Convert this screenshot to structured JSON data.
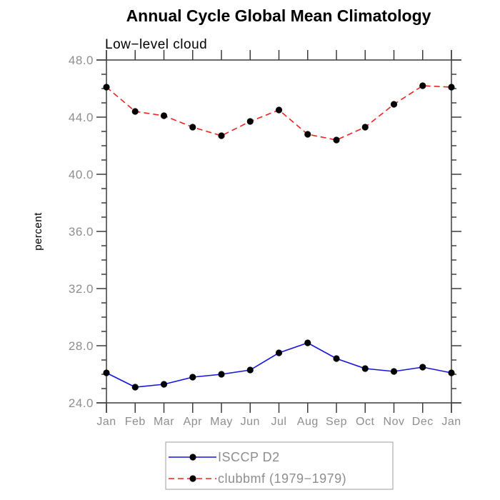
{
  "colors": {
    "background": "#ffffff",
    "title": "#000000",
    "axis": "#3c3c3c",
    "tick_text": "#8e8e8e",
    "marker": "#000000",
    "legend_border": "#9e9e9e",
    "isccp_blue": "#1414dd",
    "clubbmf_red": "#ee2222"
  },
  "chart_data": {
    "type": "line",
    "title": "Annual Cycle Global Mean Climatology",
    "subtitle": "Low−level cloud",
    "xlabel": "",
    "ylabel": "percent",
    "x_tick_labels": [
      "Jan",
      "Feb",
      "Mar",
      "Apr",
      "May",
      "Jun",
      "Jul",
      "Aug",
      "Sep",
      "Oct",
      "Nov",
      "Dec",
      "Jan"
    ],
    "y_tick_values": [
      24.0,
      28.0,
      32.0,
      36.0,
      40.0,
      44.0,
      48.0
    ],
    "y_tick_labels": [
      "24.0",
      "28.0",
      "32.0",
      "36.0",
      "40.0",
      "44.0",
      "48.0"
    ],
    "ylim": [
      24.0,
      48.0
    ],
    "y_major_step": 4,
    "y_minor_step": 1,
    "grid": false,
    "legend_position": "bottom-center",
    "series": [
      {
        "name": "ISCCP D2",
        "style": "solid",
        "marker": "circle",
        "color_key": "isccp_blue",
        "values": [
          26.1,
          25.1,
          25.3,
          25.8,
          26.0,
          26.3,
          27.5,
          28.2,
          27.1,
          26.4,
          26.2,
          26.5,
          26.1
        ]
      },
      {
        "name": "clubbmf (1979−1979)",
        "style": "dashed",
        "marker": "circle",
        "color_key": "clubbmf_red",
        "values": [
          46.1,
          44.4,
          44.1,
          43.3,
          42.7,
          43.7,
          44.5,
          42.8,
          42.4,
          43.3,
          44.9,
          46.2,
          46.1
        ]
      }
    ]
  }
}
